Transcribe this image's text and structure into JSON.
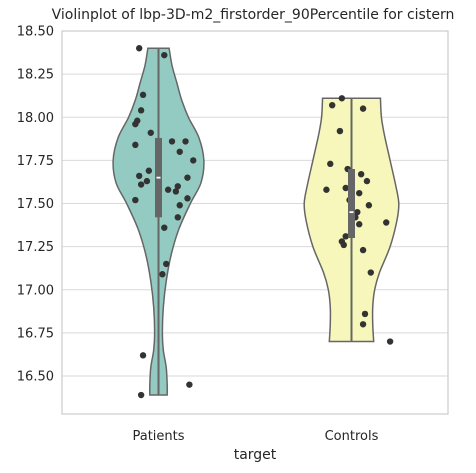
{
  "chart_data": {
    "type": "violin",
    "title": "Violinplot of lbp-3D-m2_firstorder_90Percentile for cistern",
    "xlabel": "target",
    "ylabel": "",
    "ylim": [
      16.28,
      18.5
    ],
    "yticks": [
      16.5,
      16.75,
      17.0,
      17.25,
      17.5,
      17.75,
      18.0,
      18.25,
      18.5
    ],
    "ytick_labels": [
      "16.50",
      "16.75",
      "17.00",
      "17.25",
      "17.50",
      "17.75",
      "18.00",
      "18.25",
      "18.50"
    ],
    "grid": "horizontal",
    "groups": [
      {
        "name": "Patients",
        "color": "#93cbc2",
        "range": [
          16.39,
          18.4
        ],
        "quartiles": [
          17.42,
          17.65,
          17.88
        ],
        "median": 17.65,
        "density": [
          [
            16.39,
            0.09
          ],
          [
            16.45,
            0.09
          ],
          [
            16.55,
            0.08
          ],
          [
            16.65,
            0.05
          ],
          [
            16.75,
            0.04
          ],
          [
            16.9,
            0.05
          ],
          [
            17.05,
            0.08
          ],
          [
            17.2,
            0.13
          ],
          [
            17.35,
            0.21
          ],
          [
            17.5,
            0.33
          ],
          [
            17.62,
            0.44
          ],
          [
            17.75,
            0.47
          ],
          [
            17.88,
            0.42
          ],
          [
            18.0,
            0.31
          ],
          [
            18.1,
            0.24
          ],
          [
            18.2,
            0.19
          ],
          [
            18.3,
            0.14
          ],
          [
            18.4,
            0.11
          ]
        ],
        "points": [
          [
            -0.1,
            18.4
          ],
          [
            0.03,
            18.36
          ],
          [
            -0.08,
            18.13
          ],
          [
            -0.09,
            18.04
          ],
          [
            -0.11,
            17.98
          ],
          [
            -0.12,
            17.96
          ],
          [
            -0.04,
            17.91
          ],
          [
            0.07,
            17.86
          ],
          [
            0.14,
            17.86
          ],
          [
            -0.12,
            17.84
          ],
          [
            0.11,
            17.8
          ],
          [
            0.18,
            17.75
          ],
          [
            -0.05,
            17.69
          ],
          [
            -0.1,
            17.66
          ],
          [
            0.15,
            17.65
          ],
          [
            -0.06,
            17.63
          ],
          [
            -0.09,
            17.61
          ],
          [
            0.1,
            17.6
          ],
          [
            0.05,
            17.58
          ],
          [
            0.09,
            17.57
          ],
          [
            0.15,
            17.53
          ],
          [
            -0.12,
            17.52
          ],
          [
            0.11,
            17.49
          ],
          [
            0.1,
            17.42
          ],
          [
            0.03,
            17.36
          ],
          [
            0.04,
            17.15
          ],
          [
            0.02,
            17.09
          ],
          [
            -0.08,
            16.62
          ],
          [
            0.16,
            16.45
          ],
          [
            -0.09,
            16.39
          ]
        ]
      },
      {
        "name": "Controls",
        "color": "#f7f7bb",
        "range": [
          16.7,
          18.11
        ],
        "quartiles": [
          17.3,
          17.45,
          17.7
        ],
        "median": 17.45,
        "density": [
          [
            16.7,
            0.23
          ],
          [
            16.8,
            0.22
          ],
          [
            16.9,
            0.22
          ],
          [
            17.0,
            0.24
          ],
          [
            17.1,
            0.29
          ],
          [
            17.25,
            0.4
          ],
          [
            17.4,
            0.47
          ],
          [
            17.5,
            0.49
          ],
          [
            17.6,
            0.46
          ],
          [
            17.75,
            0.4
          ],
          [
            17.9,
            0.34
          ],
          [
            18.0,
            0.31
          ],
          [
            18.11,
            0.3
          ]
        ],
        "points": [
          [
            -0.05,
            18.11
          ],
          [
            -0.1,
            18.07
          ],
          [
            0.06,
            18.05
          ],
          [
            -0.06,
            17.92
          ],
          [
            -0.11,
            17.73
          ],
          [
            -0.02,
            17.7
          ],
          [
            0.05,
            17.67
          ],
          [
            0.08,
            17.63
          ],
          [
            -0.13,
            17.58
          ],
          [
            -0.03,
            17.59
          ],
          [
            0.04,
            17.56
          ],
          [
            -0.01,
            17.52
          ],
          [
            0.09,
            17.49
          ],
          [
            0.03,
            17.45
          ],
          [
            0.02,
            17.42
          ],
          [
            0.18,
            17.39
          ],
          [
            0.04,
            17.38
          ],
          [
            -0.03,
            17.31
          ],
          [
            -0.05,
            17.28
          ],
          [
            -0.04,
            17.26
          ],
          [
            0.06,
            17.23
          ],
          [
            0.1,
            17.1
          ],
          [
            0.07,
            16.86
          ],
          [
            0.06,
            16.8
          ],
          [
            0.2,
            16.7
          ]
        ]
      }
    ]
  }
}
